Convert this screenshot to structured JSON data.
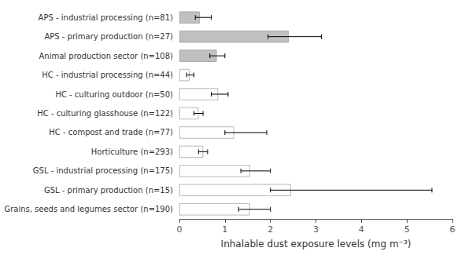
{
  "chart_data": {
    "type": "bar",
    "orientation": "horizontal",
    "categories": [
      "APS - industrial processing (n=81)",
      "APS - primary production (n=27)",
      "Animal production sector (n=108)",
      "HC - industrial processing (n=44)",
      "HC - culturing outdoor (n=50)",
      "HC - culturing glasshouse (n=122)",
      "HC - compost and trade (n=77)",
      "Horticulture (n=293)",
      "GSL - industrial processing (n=175)",
      "GSL - primary production (n=15)",
      "Grains, seeds and legumes sector (n=190)"
    ],
    "values": [
      0.45,
      2.4,
      0.82,
      0.22,
      0.85,
      0.42,
      1.2,
      0.52,
      1.55,
      2.45,
      1.55
    ],
    "error_minus": [
      0.1,
      0.45,
      0.15,
      0.06,
      0.15,
      0.1,
      0.2,
      0.1,
      0.2,
      0.45,
      0.25
    ],
    "error_plus": [
      0.25,
      0.72,
      0.18,
      0.1,
      0.22,
      0.1,
      0.72,
      0.1,
      0.45,
      3.1,
      0.45
    ],
    "colors": [
      "#c0c0c0",
      "#c0c0c0",
      "#c0c0c0",
      "#ffffff",
      "#ffffff",
      "#ffffff",
      "#ffffff",
      "#ffffff",
      "#ffffff",
      "#ffffff",
      "#ffffff"
    ],
    "xlabel": "Inhalable dust exposure levels (mg m⁻³)",
    "xlim": [
      0,
      6
    ],
    "xticks": [
      0,
      1,
      2,
      3,
      4,
      5,
      6
    ],
    "grid": false
  }
}
